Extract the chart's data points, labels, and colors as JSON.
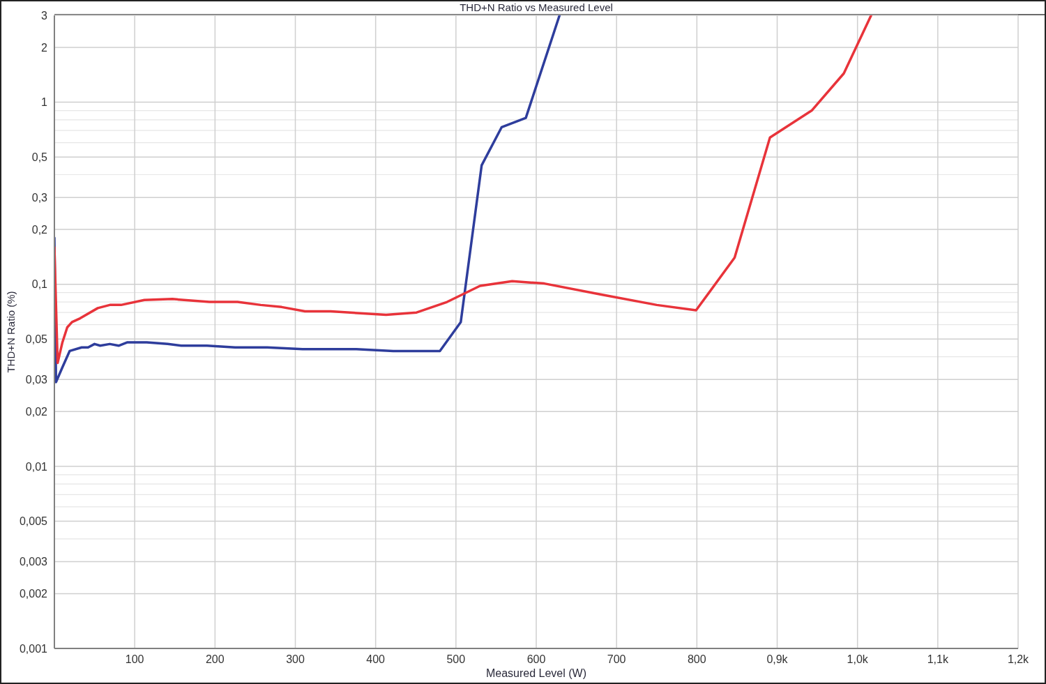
{
  "chart_data": {
    "type": "line",
    "title": "THD+N Ratio vs Measured Level",
    "xlabel": "Measured Level (W)",
    "ylabel": "THD+N Ratio (%)",
    "log": "y",
    "grid": true,
    "xlim": [
      0,
      1200
    ],
    "xticks": [
      100,
      200,
      300,
      400,
      500,
      600,
      700,
      800,
      {
        "value": 900,
        "label": "0,9k"
      },
      {
        "value": 1000,
        "label": "1,0k"
      },
      {
        "value": 1100,
        "label": "1,1k"
      },
      {
        "value": 1200,
        "label": "1,2k"
      }
    ],
    "ylim": [
      0.001,
      3
    ],
    "yticks": [
      {
        "value": 0.001,
        "label": "0,001"
      },
      {
        "value": 0.002,
        "label": "0,002"
      },
      {
        "value": 0.003,
        "label": "0,003"
      },
      {
        "value": 0.004,
        "label": null
      },
      {
        "value": 0.005,
        "label": "0,005"
      },
      {
        "value": 0.006,
        "label": null
      },
      {
        "value": 0.007,
        "label": null
      },
      {
        "value": 0.008,
        "label": null
      },
      {
        "value": 0.009,
        "label": null
      },
      {
        "value": 0.01,
        "label": "0,01"
      },
      {
        "value": 0.02,
        "label": "0,02"
      },
      {
        "value": 0.03,
        "label": "0,03"
      },
      {
        "value": 0.04,
        "label": null
      },
      {
        "value": 0.05,
        "label": "0,05"
      },
      {
        "value": 0.06,
        "label": null
      },
      {
        "value": 0.07,
        "label": null
      },
      {
        "value": 0.08,
        "label": null
      },
      {
        "value": 0.09,
        "label": null
      },
      {
        "value": 0.1,
        "label": "0,1"
      },
      {
        "value": 0.2,
        "label": "0,2"
      },
      {
        "value": 0.3,
        "label": "0,3"
      },
      {
        "value": 0.4,
        "label": null
      },
      {
        "value": 0.5,
        "label": "0,5"
      },
      {
        "value": 0.6,
        "label": null
      },
      {
        "value": 0.7,
        "label": null
      },
      {
        "value": 0.8,
        "label": null
      },
      {
        "value": 0.9,
        "label": null
      },
      {
        "value": 1,
        "label": "1"
      },
      {
        "value": 2,
        "label": "2"
      },
      {
        "value": 3,
        "label": "3"
      }
    ],
    "series": [
      {
        "color": "#2e3d9c",
        "x": [
          0,
          2,
          10,
          19,
          34,
          42,
          50,
          57,
          69,
          80,
          91,
          115,
          141,
          158,
          190,
          225,
          265,
          309,
          376,
          422,
          480,
          506,
          532,
          557,
          587,
          629
        ],
        "values": [
          0.18,
          0.029,
          0.035,
          0.043,
          0.045,
          0.045,
          0.047,
          0.046,
          0.047,
          0.046,
          0.048,
          0.048,
          0.047,
          0.046,
          0.046,
          0.045,
          0.045,
          0.044,
          0.044,
          0.043,
          0.043,
          0.062,
          0.45,
          0.73,
          0.82,
          3
        ]
      },
      {
        "color": "#e8333a",
        "x": [
          0,
          4,
          10,
          16,
          22,
          32,
          54,
          69,
          83,
          112,
          147,
          193,
          228,
          257,
          283,
          312,
          344,
          413,
          451,
          489,
          530,
          570,
          610,
          680,
          750,
          799,
          847,
          891,
          943,
          983,
          1017
        ],
        "values": [
          0.16,
          0.037,
          0.048,
          0.058,
          0.062,
          0.065,
          0.074,
          0.077,
          0.077,
          0.082,
          0.083,
          0.08,
          0.08,
          0.077,
          0.075,
          0.071,
          0.071,
          0.068,
          0.07,
          0.08,
          0.098,
          0.104,
          0.101,
          0.088,
          0.077,
          0.072,
          0.14,
          0.64,
          0.9,
          1.44,
          3
        ]
      }
    ]
  }
}
